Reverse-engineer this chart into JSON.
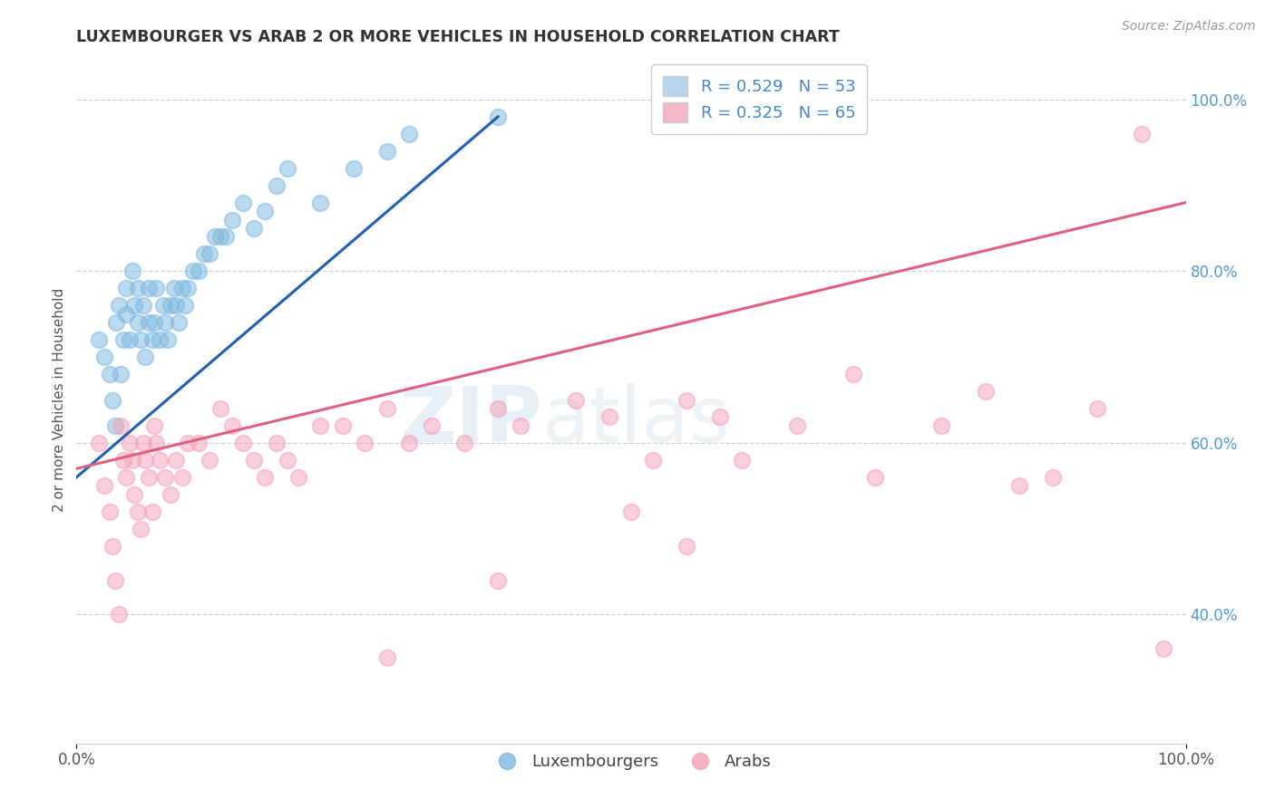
{
  "title": "LUXEMBOURGER VS ARAB 2 OR MORE VEHICLES IN HOUSEHOLD CORRELATION CHART",
  "source": "Source: ZipAtlas.com",
  "ylabel": "2 or more Vehicles in Household",
  "xlim": [
    0,
    1
  ],
  "ylim": [
    0.25,
    1.05
  ],
  "ytick_vals": [
    0.4,
    0.6,
    0.8,
    1.0
  ],
  "ytick_labels": [
    "40.0%",
    "60.0%",
    "80.0%",
    "100.0%"
  ],
  "xtick_vals": [
    0.0,
    1.0
  ],
  "xtick_labels": [
    "0.0%",
    "100.0%"
  ],
  "legend_bottom": [
    "Luxembourgers",
    "Arabs"
  ],
  "blue_color": "#7db8e0",
  "pink_color": "#f4a0b8",
  "blue_line_color": "#2060b0",
  "pink_line_color": "#e06080",
  "watermark_zip": "ZIP",
  "watermark_atlas": "atlas",
  "background_color": "#ffffff",
  "grid_color": "#cccccc",
  "blue_R": 0.529,
  "blue_N": 53,
  "pink_R": 0.325,
  "pink_N": 65,
  "blue_x": [
    0.02,
    0.025,
    0.03,
    0.032,
    0.035,
    0.036,
    0.038,
    0.04,
    0.042,
    0.045,
    0.045,
    0.048,
    0.05,
    0.052,
    0.055,
    0.055,
    0.058,
    0.06,
    0.062,
    0.065,
    0.065,
    0.068,
    0.07,
    0.072,
    0.075,
    0.078,
    0.08,
    0.082,
    0.085,
    0.088,
    0.09,
    0.092,
    0.095,
    0.098,
    0.1,
    0.105,
    0.11,
    0.115,
    0.12,
    0.125,
    0.13,
    0.135,
    0.14,
    0.15,
    0.16,
    0.17,
    0.18,
    0.19,
    0.22,
    0.25,
    0.28,
    0.3,
    0.38
  ],
  "blue_y": [
    0.72,
    0.7,
    0.68,
    0.65,
    0.62,
    0.74,
    0.76,
    0.68,
    0.72,
    0.78,
    0.75,
    0.72,
    0.8,
    0.76,
    0.74,
    0.78,
    0.72,
    0.76,
    0.7,
    0.74,
    0.78,
    0.72,
    0.74,
    0.78,
    0.72,
    0.76,
    0.74,
    0.72,
    0.76,
    0.78,
    0.76,
    0.74,
    0.78,
    0.76,
    0.78,
    0.8,
    0.8,
    0.82,
    0.82,
    0.84,
    0.84,
    0.84,
    0.86,
    0.88,
    0.85,
    0.87,
    0.9,
    0.92,
    0.88,
    0.92,
    0.94,
    0.96,
    0.98
  ],
  "pink_x": [
    0.02,
    0.025,
    0.03,
    0.032,
    0.035,
    0.038,
    0.04,
    0.042,
    0.045,
    0.048,
    0.05,
    0.052,
    0.055,
    0.058,
    0.06,
    0.062,
    0.065,
    0.068,
    0.07,
    0.072,
    0.075,
    0.08,
    0.085,
    0.09,
    0.095,
    0.1,
    0.11,
    0.12,
    0.13,
    0.14,
    0.15,
    0.16,
    0.17,
    0.18,
    0.19,
    0.2,
    0.22,
    0.24,
    0.26,
    0.28,
    0.3,
    0.32,
    0.35,
    0.38,
    0.4,
    0.45,
    0.48,
    0.52,
    0.55,
    0.58,
    0.6,
    0.65,
    0.7,
    0.72,
    0.78,
    0.82,
    0.85,
    0.88,
    0.92,
    0.96,
    0.98,
    0.55,
    0.5,
    0.38,
    0.28
  ],
  "pink_y": [
    0.6,
    0.55,
    0.52,
    0.48,
    0.44,
    0.4,
    0.62,
    0.58,
    0.56,
    0.6,
    0.58,
    0.54,
    0.52,
    0.5,
    0.6,
    0.58,
    0.56,
    0.52,
    0.62,
    0.6,
    0.58,
    0.56,
    0.54,
    0.58,
    0.56,
    0.6,
    0.6,
    0.58,
    0.64,
    0.62,
    0.6,
    0.58,
    0.56,
    0.6,
    0.58,
    0.56,
    0.62,
    0.62,
    0.6,
    0.64,
    0.6,
    0.62,
    0.6,
    0.64,
    0.62,
    0.65,
    0.63,
    0.58,
    0.65,
    0.63,
    0.58,
    0.62,
    0.68,
    0.56,
    0.62,
    0.66,
    0.55,
    0.56,
    0.64,
    0.96,
    0.36,
    0.48,
    0.52,
    0.44,
    0.35
  ],
  "blue_trend": [
    0.0,
    0.38
  ],
  "blue_trend_y": [
    0.56,
    0.98
  ],
  "pink_trend": [
    0.0,
    1.0
  ],
  "pink_trend_y": [
    0.57,
    0.88
  ]
}
